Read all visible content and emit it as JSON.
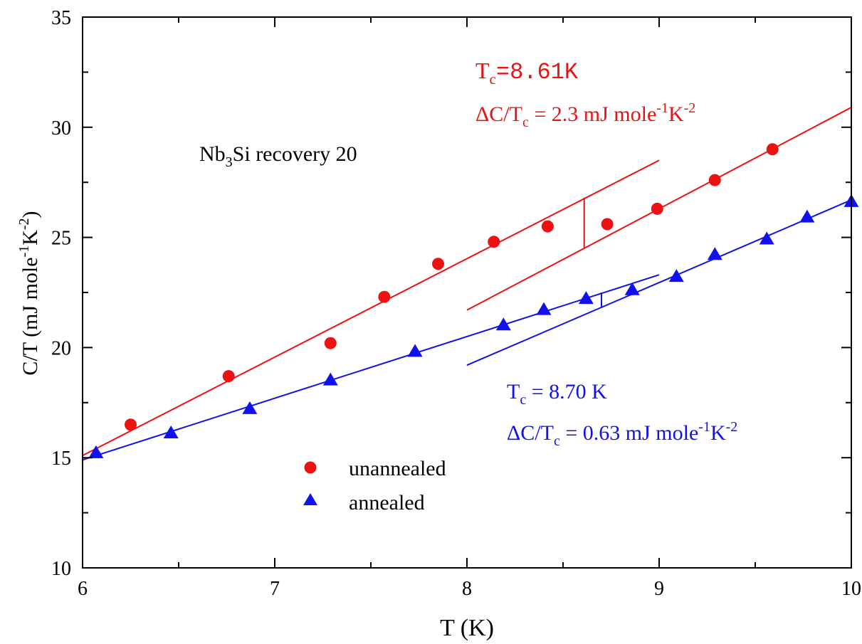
{
  "chart_data": {
    "type": "scatter",
    "xlabel": "T (K)",
    "ylabel": {
      "main": "C/T (mJ mole",
      "sup1": "-1",
      "mid": "K",
      "sup2": "-2",
      "end": ")"
    },
    "xlim": [
      6,
      10
    ],
    "ylim": [
      10,
      35
    ],
    "xticks": [
      6,
      7,
      8,
      9,
      10
    ],
    "yticks": [
      10,
      15,
      20,
      25,
      30,
      35
    ],
    "grid": false,
    "legend_position": "bottom-left",
    "sample_label": {
      "pre": "Nb",
      "sub": "3",
      "post": "Si recovery 20"
    },
    "series": [
      {
        "name": "unannealed",
        "marker": "circle",
        "color": "#ee1111",
        "x": [
          6.25,
          6.76,
          7.29,
          7.57,
          7.85,
          8.14,
          8.42,
          8.73,
          8.99,
          9.29,
          9.59
        ],
        "y": [
          16.5,
          18.7,
          20.2,
          22.3,
          23.8,
          24.8,
          25.5,
          25.6,
          26.3,
          27.6,
          29.0
        ]
      },
      {
        "name": "annealed",
        "marker": "triangle",
        "color": "#1111ee",
        "x": [
          6.07,
          6.46,
          6.87,
          7.29,
          7.73,
          8.19,
          8.4,
          8.62,
          8.86,
          9.09,
          9.29,
          9.56,
          9.77,
          10.0
        ],
        "y": [
          15.2,
          16.1,
          17.2,
          18.5,
          19.8,
          21.0,
          21.7,
          22.2,
          22.6,
          23.2,
          24.2,
          24.9,
          25.9,
          26.6
        ]
      }
    ],
    "fit_lines": [
      {
        "color": "#ee1111",
        "x": [
          6.0,
          9.0
        ],
        "y": [
          15.1,
          28.5
        ]
      },
      {
        "color": "#ee1111",
        "x": [
          8.0,
          10.0
        ],
        "y": [
          21.7,
          30.9
        ]
      },
      {
        "color": "#ee1111",
        "x": [
          8.61,
          8.61
        ],
        "y": [
          24.5,
          26.8
        ]
      },
      {
        "color": "#1111ee",
        "x": [
          6.0,
          9.0
        ],
        "y": [
          14.9,
          23.3
        ]
      },
      {
        "color": "#1111ee",
        "x": [
          8.0,
          10.0
        ],
        "y": [
          19.2,
          26.7
        ]
      },
      {
        "color": "#1111ee",
        "x": [
          8.7,
          8.7
        ],
        "y": [
          21.8,
          22.5
        ]
      }
    ],
    "annotations": {
      "unannealed": {
        "color": "#ee1111",
        "tc_sym": "T",
        "tc_sub": "c",
        "tc_value": "=8.61K",
        "dc_sym": "ΔC/T",
        "dc_sub": "c",
        "dc_value": " = 2.3 mJ mole",
        "dc_sup1": "-1",
        "dc_mid": "K",
        "dc_sup2": "-2"
      },
      "annealed": {
        "color": "#1111ee",
        "tc_sym": "T",
        "tc_sub": "c",
        "tc_value": " = 8.70 K",
        "dc_sym": "ΔC/T",
        "dc_sub": "c",
        "dc_value": " = 0.63 mJ mole",
        "dc_sup1": "-1",
        "dc_mid": "K",
        "dc_sup2": "-2"
      }
    }
  }
}
